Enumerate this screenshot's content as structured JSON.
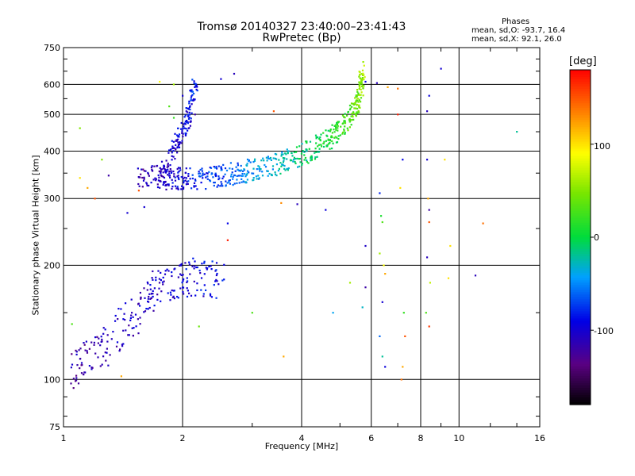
{
  "header": {
    "title_line1": "Tromsø 20140327 23:40:00–23:41:43",
    "title_line2": "RwPretec (Bp)",
    "stats_label": "Phases",
    "stats_o": "mean, sd,O: -93.7, 16.4",
    "stats_x": "mean, sd,X:  92.1, 26.0"
  },
  "colorbar": {
    "unit": "[deg]",
    "ticks": [
      "100",
      "0",
      "-100"
    ],
    "range": [
      -180,
      180
    ]
  },
  "chart_data": {
    "type": "scatter",
    "title": "Tromsø 20140327 23:40:00–23:41:43",
    "subtitle": "RwPretec (Bp)",
    "xlabel": "Frequency [MHz]",
    "ylabel": "Stationary phase Virtual Height [km]",
    "x_scale": "log",
    "y_scale": "log",
    "xlim": [
      1,
      16
    ],
    "ylim": [
      75,
      750
    ],
    "x_ticks": [
      1,
      2,
      4,
      6,
      8,
      10,
      16
    ],
    "x_tick_labels": [
      "1",
      "2",
      "4",
      "6",
      "8",
      "10",
      "16"
    ],
    "y_ticks": [
      75,
      100,
      200,
      300,
      400,
      500,
      600,
      750
    ],
    "y_tick_labels": [
      "75",
      "100",
      "200",
      "300",
      "400",
      "500",
      "600",
      "750"
    ],
    "grid": true,
    "color_scale": "phase [deg], rainbow, -180 to 180",
    "series": [
      {
        "trace": [
          [
            1.55,
            335
          ],
          [
            1.7,
            335
          ],
          [
            1.85,
            330
          ],
          [
            2.0,
            330
          ],
          [
            2.2,
            330
          ],
          [
            2.4,
            335
          ],
          [
            2.6,
            338
          ],
          [
            2.8,
            342
          ],
          [
            3.0,
            348
          ],
          [
            3.3,
            355
          ],
          [
            3.6,
            365
          ],
          [
            3.9,
            380
          ],
          [
            4.2,
            390
          ],
          [
            4.5,
            410
          ],
          [
            4.8,
            430
          ],
          [
            5.1,
            455
          ],
          [
            5.4,
            490
          ],
          [
            5.55,
            530
          ],
          [
            5.65,
            580
          ],
          [
            5.7,
            630
          ]
        ],
        "spread": [
          0.03,
          0.07
        ],
        "phase": [
          -120,
          60
        ]
      },
      {
        "trace": [
          [
            1.05,
            97
          ],
          [
            1.15,
            110
          ],
          [
            1.3,
            118
          ],
          [
            1.5,
            140
          ],
          [
            1.65,
            160
          ],
          [
            1.8,
            170
          ],
          [
            2.0,
            175
          ],
          [
            2.2,
            180
          ],
          [
            2.5,
            175
          ]
        ],
        "spread": [
          0.09,
          0.12
        ],
        "phase": [
          -120,
          -90
        ]
      },
      {
        "trace": [
          [
            1.75,
            330
          ],
          [
            1.85,
            370
          ],
          [
            1.95,
            420
          ],
          [
            2.05,
            460
          ],
          [
            2.1,
            520
          ],
          [
            2.15,
            590
          ]
        ],
        "spread": [
          0.04,
          0.05
        ],
        "phase": [
          -115,
          -80
        ]
      }
    ],
    "points": [
      [
        6.3,
        310,
        -80
      ],
      [
        6.35,
        270,
        10
      ],
      [
        6.4,
        260,
        30
      ],
      [
        6.3,
        215,
        60
      ],
      [
        6.45,
        200,
        90
      ],
      [
        6.5,
        190,
        120
      ],
      [
        6.4,
        160,
        -100
      ],
      [
        6.3,
        130,
        -60
      ],
      [
        6.4,
        115,
        -20
      ],
      [
        6.5,
        108,
        -95
      ],
      [
        7.2,
        380,
        -90
      ],
      [
        7.1,
        320,
        100
      ],
      [
        7.25,
        150,
        20
      ],
      [
        7.3,
        130,
        150
      ],
      [
        7.2,
        108,
        120
      ],
      [
        7.15,
        100,
        140
      ],
      [
        7.0,
        500,
        170
      ],
      [
        8.3,
        380,
        -100
      ],
      [
        8.35,
        300,
        120
      ],
      [
        8.4,
        260,
        150
      ],
      [
        8.3,
        210,
        -110
      ],
      [
        8.45,
        180,
        70
      ],
      [
        8.25,
        150,
        30
      ],
      [
        8.4,
        138,
        160
      ],
      [
        8.4,
        280,
        -120
      ],
      [
        9.0,
        660,
        -100
      ],
      [
        8.3,
        510,
        -110
      ],
      [
        8.4,
        560,
        -95
      ],
      [
        9.5,
        225,
        100
      ],
      [
        9.4,
        185,
        100
      ],
      [
        11,
        188,
        -110
      ],
      [
        11.5,
        258,
        140
      ],
      [
        14,
        450,
        -20
      ],
      [
        3.55,
        292,
        130
      ],
      [
        3.9,
        290,
        -110
      ],
      [
        4.6,
        280,
        -95
      ],
      [
        4.8,
        150,
        -40
      ],
      [
        5.3,
        180,
        60
      ],
      [
        5.7,
        155,
        -30
      ],
      [
        5.8,
        175,
        -120
      ],
      [
        5.8,
        225,
        -105
      ],
      [
        3.6,
        115,
        120
      ],
      [
        2.2,
        138,
        40
      ],
      [
        2.6,
        258,
        -90
      ],
      [
        2.6,
        233,
        170
      ],
      [
        3.0,
        150,
        30
      ],
      [
        1.6,
        285,
        -100
      ],
      [
        1.2,
        300,
        150
      ],
      [
        1.15,
        320,
        120
      ],
      [
        1.1,
        340,
        100
      ],
      [
        1.25,
        380,
        50
      ],
      [
        1.1,
        460,
        50
      ],
      [
        1.05,
        140,
        30
      ],
      [
        1.4,
        102,
        120
      ],
      [
        1.3,
        345,
        -120
      ],
      [
        2.7,
        640,
        -110
      ],
      [
        2.5,
        620,
        -100
      ],
      [
        1.75,
        610,
        90
      ],
      [
        1.9,
        600,
        60
      ],
      [
        5.8,
        610,
        -90
      ],
      [
        6.2,
        605,
        -110
      ],
      [
        6.6,
        590,
        120
      ],
      [
        7.0,
        585,
        140
      ],
      [
        3.4,
        510,
        150
      ],
      [
        1.85,
        525,
        30
      ],
      [
        1.9,
        490,
        20
      ],
      [
        2.0,
        560,
        -100
      ],
      [
        2.15,
        500,
        -120
      ],
      [
        1.55,
        315,
        150
      ],
      [
        1.45,
        275,
        -100
      ],
      [
        9.2,
        380,
        100
      ]
    ]
  }
}
